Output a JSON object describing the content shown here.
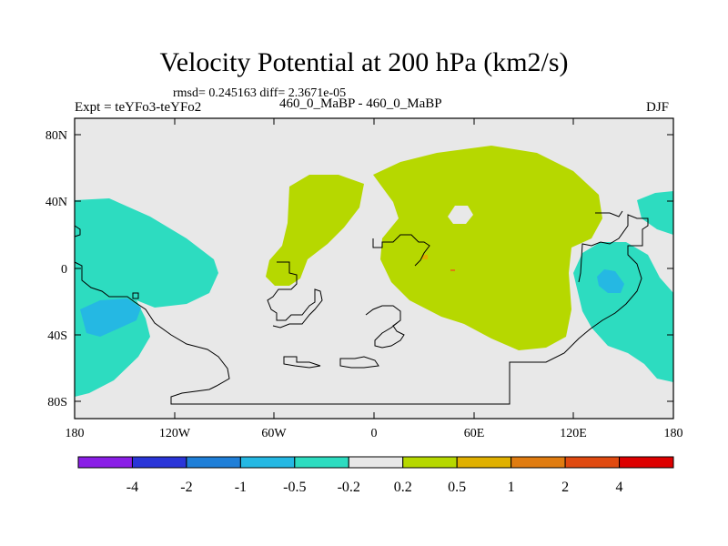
{
  "chart_data": {
    "type": "heatmap",
    "title": "Velocity Potential at 200 hPa (km2/s)",
    "subtitle_stats": "rmsd= 0.245163  diff= 2.3671e-05",
    "left_label": "Expt = teYFo3-teYFo2",
    "center_label": "460_0_MaBP - 460_0_MaBP",
    "right_label": "DJF",
    "x_ticks": [
      "180",
      "120W",
      "60W",
      "0",
      "60E",
      "120E",
      "180"
    ],
    "y_ticks": [
      "80N",
      "40N",
      "0",
      "40S",
      "80S"
    ],
    "xlim": [
      -180,
      180
    ],
    "ylim": [
      -90,
      90
    ],
    "colorbar": {
      "labels": [
        "-4",
        "-2",
        "-1",
        "-0.5",
        "-0.2",
        "0.2",
        "0.5",
        "1",
        "2",
        "4"
      ],
      "colors": [
        "#8a1ee6",
        "#2a35d8",
        "#1f7fd8",
        "#25b8e3",
        "#2ddcc0",
        "#e8e8e8",
        "#b6d800",
        "#e0b000",
        "#e07c10",
        "#e04a10",
        "#dd0000"
      ]
    },
    "regions": [
      {
        "name": "positive-region-atlantic",
        "level": "0.2 to 0.5"
      },
      {
        "name": "positive-region-africa-asia",
        "level": "0.2 to 0.5"
      },
      {
        "name": "negative-region-pacific-west",
        "level": "-0.5 to -0.2"
      },
      {
        "name": "negative-core-pacific-west",
        "level": "-1 to -0.5"
      },
      {
        "name": "negative-region-east",
        "level": "-0.5 to -0.2"
      },
      {
        "name": "negative-core-east",
        "level": "-1 to -0.5"
      }
    ],
    "background": "#e8e8e8"
  }
}
